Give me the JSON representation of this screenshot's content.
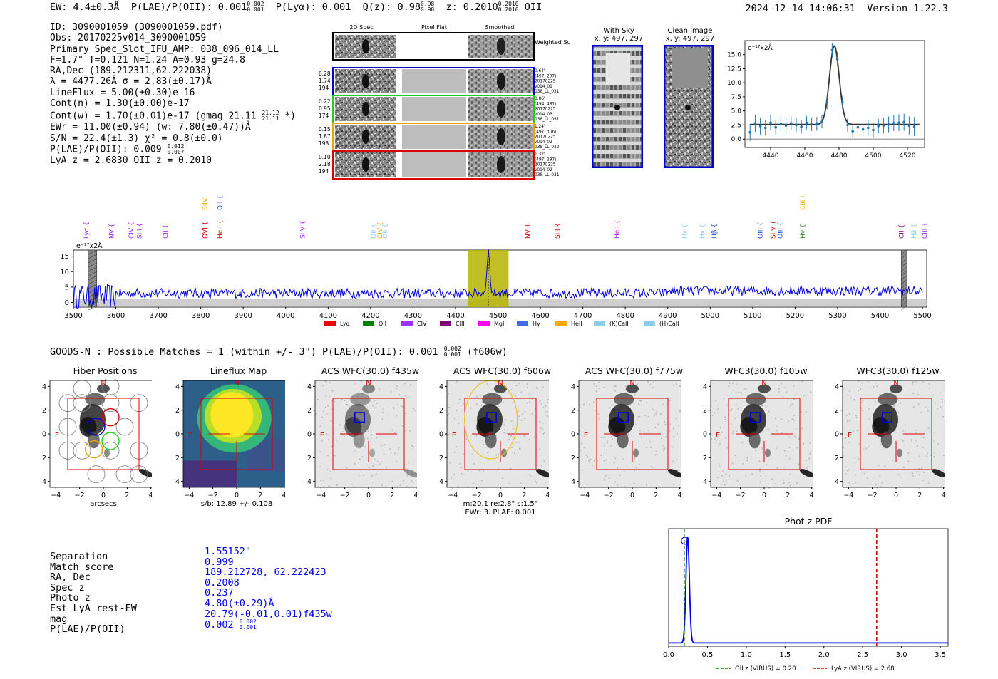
{
  "header": {
    "ew": "EW: 4.4±0.3Å",
    "plae_label": "P(LAE)/P(OII): 0.001",
    "plae_hi": "0.002",
    "plae_lo": "0.001",
    "plya": "P(Lyα): 0.001",
    "q_label": "Q(z): 0.98",
    "q_hi": "0.98",
    "q_lo": "0.98",
    "z_label": "z: 0.2010",
    "z_hi": "0.2010",
    "z_lo": "0.2010",
    "line": "OII",
    "timestamp": "2024-12-14 14:06:31",
    "version": "Version 1.22.3"
  },
  "info": {
    "id": "ID: 3090001059 (3090001059.pdf)",
    "obs": "Obs: 20170225v014_3090001059",
    "primary": "Primary Spec_Slot_IFU_AMP: 038_096_014_LL",
    "params": "F=1.7\"  T=0.121  N=1.24  A=0.93  g=24.8",
    "radec": "RA,Dec (189.212311,62.222038)",
    "lambda": "λ = 4477.26Å  σ = 2.83(±0.17)Å",
    "lineflux": "LineFlux = 5.00(±0.30)e-16",
    "contn": "Cont(n) = 1.30(±0.00)e-17",
    "contw": "Cont(w) = 1.70(±0.01)e-17 (gmag 21.11",
    "contw_hi": "21.12",
    "contw_lo": "21.11",
    "contw_end": "*)",
    "ewr": "EWr = 11.00(±0.94) (w: 7.80(±0.47))Å",
    "sn": "S/N = 22.4(±1.3)  χ² = 0.8(±0.0)",
    "plae": "P(LAE)/P(OII): 0.009",
    "plae_hi": "0.012",
    "plae_lo": "0.007",
    "lyaz": "LyA z = 2.6830  OII z = 0.2010"
  },
  "fiber_panel": {
    "col_headers": [
      "2D Spec",
      "Pixel Flat",
      "Smoothed"
    ],
    "weighted_sum": "Weighted Sum",
    "rows": [
      {
        "left": [
          "0.28",
          "1.74",
          "194"
        ],
        "right": [
          "0.64\"",
          "(497, 297)",
          "20170225",
          "v014_01",
          "038_LL_031"
        ],
        "color": "#0000cc"
      },
      {
        "left": [
          "0.22",
          "0.95",
          "174"
        ],
        "right": [
          "0.86\"",
          "(494, 481)",
          "20170225",
          "v014_03",
          "038_LL_051"
        ],
        "color": "#22cc22"
      },
      {
        "left": [
          "0.15",
          "1.87",
          "193"
        ],
        "right": [
          "1.24\"",
          "(497, 306)",
          "20170225",
          "v014_02",
          "038_LL_032"
        ],
        "color": "#e6a800"
      },
      {
        "left": [
          "0.10",
          "2.18",
          "194"
        ],
        "right": [
          "1.32\"",
          "(497, 297)",
          "20170225",
          "v014_02",
          "038_LL_031"
        ],
        "color": "#dd0000"
      }
    ]
  },
  "sky_panels": {
    "with_sky": "With Sky",
    "with_sky_xy": "x, y: 497, 297",
    "clean": "Clean Image",
    "clean_xy": "x, y: 497, 297"
  },
  "line_zoom_chart": {
    "type": "line",
    "unit_label": "e⁻¹⁷x2Å",
    "xlim": [
      4425,
      4530
    ],
    "ylim": [
      -1.5,
      17.5
    ],
    "xticks": [
      4440,
      4460,
      4480,
      4500,
      4520
    ],
    "yticks": [
      0.0,
      2.5,
      5.0,
      7.5,
      10.0,
      12.5,
      15.0
    ],
    "ytick_labels": [
      "0.0",
      "2.5",
      "5.0",
      "7.5",
      "10.0",
      "12.5",
      "15.0"
    ],
    "fit": {
      "center": 4477.26,
      "sigma": 2.83,
      "amplitude": 14.0,
      "continuum": 2.6
    },
    "points_x": [
      4428,
      4431,
      4434,
      4437,
      4440,
      4443,
      4446,
      4449,
      4452,
      4455,
      4458,
      4461,
      4464,
      4467,
      4470,
      4473,
      4476,
      4479,
      4482,
      4485,
      4488,
      4491,
      4494,
      4497,
      4500,
      4503,
      4506,
      4509,
      4512,
      4515,
      4518,
      4521,
      4524
    ],
    "points_y": [
      1.2,
      2.8,
      2.3,
      2.0,
      2.9,
      2.1,
      2.7,
      2.4,
      2.8,
      2.5,
      2.2,
      2.9,
      2.6,
      2.7,
      3.1,
      6.5,
      15.8,
      14.2,
      6.5,
      2.5,
      1.4,
      2.1,
      1.7,
      2.0,
      1.6,
      2.3,
      2.4,
      2.6,
      2.8,
      2.9,
      3.0,
      2.4,
      2.2
    ],
    "errors": [
      1.5,
      1.5,
      1.5,
      1.4,
      1.4,
      1.3,
      1.3,
      1.3,
      1.2,
      1.2,
      1.2,
      1.2,
      1.2,
      1.2,
      1.2,
      1.2,
      1.3,
      1.3,
      1.2,
      1.2,
      1.2,
      1.2,
      1.2,
      1.3,
      1.3,
      1.3,
      1.4,
      1.4,
      1.4,
      1.5,
      1.5,
      1.6,
      1.7
    ]
  },
  "full_spectrum_chart": {
    "type": "line",
    "unit_label": "e⁻¹⁷x2Å",
    "xlim": [
      3500,
      5510
    ],
    "ylim": [
      -1.5,
      17
    ],
    "xticks": [
      3500,
      3600,
      3700,
      3800,
      3900,
      4000,
      4100,
      4200,
      4300,
      4400,
      4500,
      4600,
      4700,
      4800,
      4900,
      5000,
      5100,
      5200,
      5300,
      5400,
      5500
    ],
    "yticks": [
      0,
      5,
      10,
      15
    ],
    "continuum_level": 3.0,
    "line_peak": {
      "wavelength": 4477.26,
      "sigma": 3.5,
      "amplitude": 13.5
    },
    "highlight_band": [
      4430,
      4525
    ],
    "masked_regions": [
      [
        3535,
        3555
      ],
      [
        5450,
        5462
      ]
    ],
    "line_labels": [
      {
        "label": "Lyα",
        "wavelength": 3530,
        "color": "#a020f0",
        "row": "low"
      },
      {
        "label": "NV",
        "wavelength": 3590,
        "color": "#a020f0",
        "row": "low"
      },
      {
        "label": "CIV",
        "wavelength": 3636,
        "color": "#a020f0",
        "row": "low"
      },
      {
        "label": "SiII",
        "wavelength": 3655,
        "color": "#a020f0",
        "row": "low"
      },
      {
        "label": "CII",
        "wavelength": 3717,
        "color": "#a020f0",
        "row": "low"
      },
      {
        "label": "OVI",
        "wavelength": 3810,
        "color": "#dd0000",
        "row": "low"
      },
      {
        "label": "SiIV",
        "wavelength": 3810,
        "color": "#e6a800",
        "row": "high"
      },
      {
        "label": "HeII",
        "wavelength": 3845,
        "color": "#dd0000",
        "row": "low"
      },
      {
        "label": "OII",
        "wavelength": 3845,
        "color": "#1f4fd8",
        "row": "high"
      },
      {
        "label": "SiIV",
        "wavelength": 4040,
        "color": "#a020f0",
        "row": "low"
      },
      {
        "label": "OII",
        "wavelength": 4207,
        "color": "#87ceeb",
        "row": "low"
      },
      {
        "label": "CIV",
        "wavelength": 4222,
        "color": "#e6a800",
        "row": "low"
      },
      {
        "label": "OII",
        "wavelength": 4234,
        "color": "#87ceeb",
        "row": "low"
      },
      {
        "label": "NV",
        "wavelength": 4570,
        "color": "#dd0000",
        "row": "low"
      },
      {
        "label": "SiII",
        "wavelength": 4640,
        "color": "#dd0000",
        "row": "low"
      },
      {
        "label": "HeII",
        "wavelength": 4780,
        "color": "#a020f0",
        "row": "low"
      },
      {
        "label": "Hγ",
        "wavelength": 4940,
        "color": "#87ceeb",
        "row": "low"
      },
      {
        "label": "Hγ",
        "wavelength": 4982,
        "color": "#87ceeb",
        "row": "low"
      },
      {
        "label": "Hβ",
        "wavelength": 5010,
        "color": "#1f4fd8",
        "row": "low"
      },
      {
        "label": "OIII",
        "wavelength": 5118,
        "color": "#1f4fd8",
        "row": "low"
      },
      {
        "label": "SiIV",
        "wavelength": 5148,
        "color": "#dd0000",
        "row": "low"
      },
      {
        "label": "OIII",
        "wavelength": 5165,
        "color": "#1f4fd8",
        "row": "low"
      },
      {
        "label": "Hγ",
        "wavelength": 5218,
        "color": "#228b22",
        "row": "low"
      },
      {
        "label": "CIII",
        "wavelength": 5218,
        "color": "#e6a800",
        "row": "high"
      },
      {
        "label": "CII",
        "wavelength": 5450,
        "color": "#800080",
        "row": "low"
      },
      {
        "label": "Hβ",
        "wavelength": 5480,
        "color": "#87ceeb",
        "row": "low"
      },
      {
        "label": "CIII",
        "wavelength": 5505,
        "color": "#a020f0",
        "row": "low"
      }
    ],
    "legend": [
      {
        "label": "Lyα",
        "color": "#e8000b"
      },
      {
        "label": "OII",
        "color": "#008000"
      },
      {
        "label": "CIV",
        "color": "#9b30ff"
      },
      {
        "label": "CIII",
        "color": "#800080"
      },
      {
        "label": "MgII",
        "color": "#ff00ff"
      },
      {
        "label": "Hγ",
        "color": "#4169e1"
      },
      {
        "label": "HeII",
        "color": "#ffa500"
      },
      {
        "label": "(K)CaII",
        "color": "#87ceeb"
      },
      {
        "label": "(H)CaII",
        "color": "#87ceeb"
      }
    ]
  },
  "matches_header": {
    "text": "GOODS-N : Possible Matches = 1 (within +/- 3\")  P(LAE)/P(OII): 0.001",
    "hi": "0.002",
    "lo": "0.001",
    "band": "(f606w)"
  },
  "cutouts": {
    "ticks": [
      "4",
      "2",
      "0",
      "−2",
      "−4"
    ],
    "xticks": [
      "−4",
      "−2",
      "0",
      "2",
      "4"
    ],
    "north": "N",
    "east": "E",
    "panels": [
      {
        "title": "Fiber Positions",
        "kind": "fiber",
        "caption": [
          "arcsecs"
        ]
      },
      {
        "title": "Lineflux Map",
        "kind": "lineflux",
        "caption": [
          "s/b: 12.89 +/- 0.108"
        ]
      },
      {
        "title": "ACS WFC(30.0) f435w",
        "kind": "image",
        "caption": []
      },
      {
        "title": "ACS WFC(30.0) f606w",
        "kind": "image_ellipse",
        "caption": [
          "m:20.1  re:2.8\"  s:1.5\"",
          "EWr: 3, PLAE: 0.001"
        ]
      },
      {
        "title": "ACS WFC(30.0) f775w",
        "kind": "image",
        "caption": []
      },
      {
        "title": "WFC3(30.0) f105w",
        "kind": "image",
        "caption": []
      },
      {
        "title": "WFC3(30.0) f125w",
        "kind": "image",
        "caption": []
      }
    ]
  },
  "match_table": {
    "labels": [
      "Separation",
      "Match score",
      "RA, Dec",
      "Spec z",
      "Photo z",
      "Est LyA rest-EW",
      "mag",
      "P(LAE)/P(OII)"
    ],
    "values": [
      "1.55152\"",
      "0.999",
      "189.212728, 62.222423",
      "0.2008",
      "0.237",
      "4.80(±0.29)Å",
      "20.79(-0.01,0.01)f435w",
      "0.002"
    ],
    "plae_hi": "0.002",
    "plae_lo": "0.001"
  },
  "photz_chart": {
    "type": "line",
    "title": "Phot z PDF",
    "xlim": [
      0.0,
      3.6
    ],
    "xticks": [
      0.0,
      0.5,
      1.0,
      1.5,
      2.0,
      2.5,
      3.0,
      3.5
    ],
    "xtick_labels": [
      "0.0",
      "0.5",
      "1.0",
      "1.5",
      "2.0",
      "2.5",
      "3.0",
      "3.5"
    ],
    "peak_z": 0.245,
    "peak_width": 0.022,
    "oii_z": 0.2,
    "lya_z": 2.68,
    "legend": [
      {
        "label": "OII z (VIRUS) = 0.20",
        "color": "#008000"
      },
      {
        "label": "LyA z (VIRUS) = 2.68",
        "color": "#dd0000"
      }
    ]
  }
}
